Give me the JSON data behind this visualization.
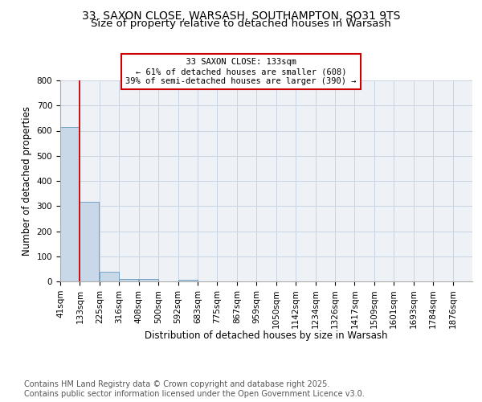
{
  "title_line1": "33, SAXON CLOSE, WARSASH, SOUTHAMPTON, SO31 9TS",
  "title_line2": "Size of property relative to detached houses in Warsash",
  "xlabel": "Distribution of detached houses by size in Warsash",
  "ylabel": "Number of detached properties",
  "bins": [
    41,
    133,
    225,
    316,
    408,
    500,
    592,
    683,
    775,
    867,
    959,
    1050,
    1142,
    1234,
    1326,
    1417,
    1509,
    1601,
    1693,
    1784,
    1876
  ],
  "bar_heights": [
    616,
    316,
    40,
    10,
    10,
    0,
    5,
    0,
    0,
    0,
    0,
    0,
    0,
    0,
    0,
    0,
    0,
    0,
    0,
    0
  ],
  "bar_color": "#c8d8e8",
  "bar_edge_color": "#6699bb",
  "property_size": 133,
  "property_line_color": "#cc0000",
  "annotation_text": "  33 SAXON CLOSE: 133sqm  \n← 61% of detached houses are smaller (608)\n39% of semi-detached houses are larger (390) →",
  "annotation_box_color": "#cc0000",
  "annotation_text_color": "#000000",
  "ylim": [
    0,
    800
  ],
  "yticks": [
    0,
    100,
    200,
    300,
    400,
    500,
    600,
    700,
    800
  ],
  "grid_color": "#c8d4e0",
  "background_color": "#eef2f6",
  "plot_bg_color": "#eef2f6",
  "footer_text": "Contains HM Land Registry data © Crown copyright and database right 2025.\nContains public sector information licensed under the Open Government Licence v3.0.",
  "title_fontsize": 10,
  "subtitle_fontsize": 9.5,
  "label_fontsize": 8.5,
  "tick_fontsize": 7.5,
  "annotation_fontsize": 7.5,
  "footer_fontsize": 7
}
